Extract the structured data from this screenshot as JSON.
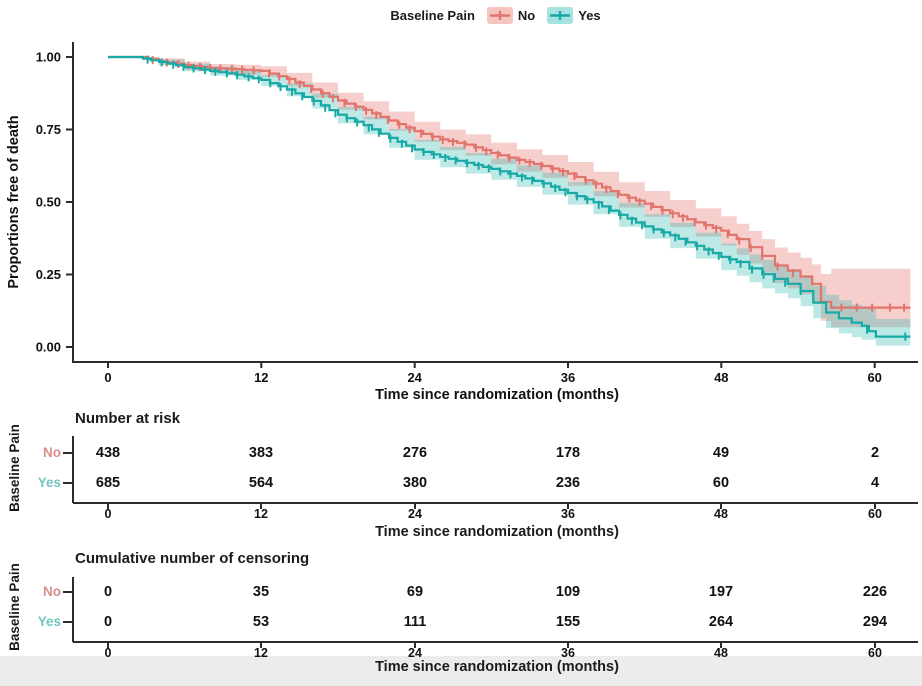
{
  "legend": {
    "title": "Baseline Pain",
    "items": [
      {
        "label": "No",
        "color": "#E1746C",
        "band": "#F5C4BF"
      },
      {
        "label": "Yes",
        "color": "#17A9A5",
        "band": "#A6E3E0"
      }
    ]
  },
  "main_plot": {
    "ylabel": "Proportions free of death",
    "xlabel": "Time since randomization (months)",
    "ytick_labels": [
      "0.00",
      "0.25",
      "0.50",
      "0.75",
      "1.00"
    ]
  },
  "chart_data": {
    "type": "line",
    "subtype": "kaplan-meier-survival",
    "title": "",
    "xlabel": "Time since randomization (months)",
    "ylabel": "Proportions free of death",
    "legend_title": "Baseline Pain",
    "legend_position": "top",
    "xlim": [
      0,
      62.8
    ],
    "ylim": [
      0,
      1
    ],
    "xticks": [
      0,
      12,
      24,
      36,
      48,
      60
    ],
    "yticks": [
      0,
      0.25,
      0.5,
      0.75,
      1
    ],
    "grid": false,
    "series": [
      {
        "name": "No",
        "color": "#E1746C",
        "band": "rgba(230,118,110,0.35)",
        "label_color": "#D98F89",
        "points": [
          [
            0,
            1,
            1,
            1
          ],
          [
            2.3,
            1,
            0.995,
            1
          ],
          [
            4,
            0.985,
            0.973,
            0.995
          ],
          [
            6,
            0.972,
            0.957,
            0.984
          ],
          [
            8,
            0.962,
            0.945,
            0.976
          ],
          [
            10,
            0.958,
            0.94,
            0.973
          ],
          [
            12,
            0.952,
            0.932,
            0.968
          ],
          [
            14,
            0.924,
            0.899,
            0.945
          ],
          [
            16,
            0.888,
            0.86,
            0.912
          ],
          [
            18,
            0.85,
            0.818,
            0.877
          ],
          [
            20,
            0.818,
            0.785,
            0.847
          ],
          [
            22,
            0.781,
            0.746,
            0.812
          ],
          [
            24,
            0.744,
            0.708,
            0.777
          ],
          [
            26,
            0.716,
            0.679,
            0.75
          ],
          [
            28,
            0.698,
            0.66,
            0.733
          ],
          [
            30,
            0.669,
            0.63,
            0.705
          ],
          [
            32,
            0.645,
            0.605,
            0.682
          ],
          [
            34,
            0.624,
            0.583,
            0.662
          ],
          [
            36,
            0.598,
            0.556,
            0.638
          ],
          [
            38,
            0.563,
            0.52,
            0.604
          ],
          [
            40,
            0.525,
            0.481,
            0.568
          ],
          [
            42,
            0.494,
            0.449,
            0.538
          ],
          [
            44,
            0.461,
            0.414,
            0.507
          ],
          [
            46,
            0.43,
            0.381,
            0.478
          ],
          [
            48,
            0.401,
            0.35,
            0.451
          ],
          [
            49.2,
            0.372,
            0.318,
            0.425
          ],
          [
            50.2,
            0.344,
            0.288,
            0.4
          ],
          [
            51.2,
            0.314,
            0.256,
            0.372
          ],
          [
            52.2,
            0.281,
            0.221,
            0.343
          ],
          [
            53.2,
            0.263,
            0.202,
            0.326
          ],
          [
            54.2,
            0.243,
            0.181,
            0.308
          ],
          [
            55.1,
            0.218,
            0.155,
            0.285
          ],
          [
            55.8,
            0.156,
            0.09,
            0.252
          ],
          [
            56.6,
            0.136,
            0.068,
            0.27
          ],
          [
            62.8,
            0.136,
            0.068,
            0.27
          ]
        ],
        "censor_ticks": [
          3.5,
          4.6,
          5.5,
          6.3,
          7.2,
          8,
          8.8,
          9.7,
          10.5,
          11.4,
          12.6,
          13.4,
          14.2,
          15,
          15.9,
          16.8,
          17.6,
          18.5,
          19.4,
          20.2,
          21,
          21.9,
          22.8,
          23.6,
          24.5,
          25.4,
          26.2,
          27,
          27.9,
          28.8,
          29.6,
          30.5,
          31.4,
          32.2,
          33,
          33.9,
          34.8,
          35.6,
          36.5,
          37.4,
          38.2,
          39,
          39.9,
          40.8,
          41.6,
          42.5,
          43.4,
          44.2,
          45,
          45.9,
          46.8,
          47.6,
          48.5,
          49.4,
          50.3,
          51.2,
          52.4,
          53.6,
          57.4,
          58.6,
          59.8,
          61.2,
          62.3
        ]
      },
      {
        "name": "Yes",
        "color": "#17A9A5",
        "band": "rgba(34,178,173,0.30)",
        "label_color": "#72C6C2",
        "points": [
          [
            0,
            1,
            1,
            1
          ],
          [
            2.1,
            1,
            0.996,
            1
          ],
          [
            4,
            0.983,
            0.972,
            0.991
          ],
          [
            6,
            0.965,
            0.951,
            0.977
          ],
          [
            8,
            0.952,
            0.936,
            0.966
          ],
          [
            10,
            0.939,
            0.921,
            0.955
          ],
          [
            12,
            0.921,
            0.9,
            0.938
          ],
          [
            14,
            0.888,
            0.864,
            0.909
          ],
          [
            16,
            0.849,
            0.822,
            0.873
          ],
          [
            18,
            0.801,
            0.771,
            0.828
          ],
          [
            20,
            0.765,
            0.733,
            0.794
          ],
          [
            22,
            0.721,
            0.687,
            0.752
          ],
          [
            24,
            0.681,
            0.646,
            0.714
          ],
          [
            26,
            0.656,
            0.62,
            0.69
          ],
          [
            28,
            0.635,
            0.598,
            0.669
          ],
          [
            30,
            0.614,
            0.577,
            0.649
          ],
          [
            32,
            0.59,
            0.552,
            0.626
          ],
          [
            34,
            0.564,
            0.525,
            0.601
          ],
          [
            36,
            0.531,
            0.491,
            0.569
          ],
          [
            38,
            0.499,
            0.458,
            0.538
          ],
          [
            40,
            0.456,
            0.414,
            0.497
          ],
          [
            42,
            0.416,
            0.373,
            0.458
          ],
          [
            44,
            0.385,
            0.341,
            0.428
          ],
          [
            46,
            0.349,
            0.304,
            0.394
          ],
          [
            48,
            0.311,
            0.265,
            0.357
          ],
          [
            49.2,
            0.293,
            0.246,
            0.34
          ],
          [
            50.2,
            0.271,
            0.223,
            0.319
          ],
          [
            51.2,
            0.251,
            0.202,
            0.3
          ],
          [
            52.2,
            0.235,
            0.185,
            0.285
          ],
          [
            53.2,
            0.218,
            0.168,
            0.269
          ],
          [
            54.2,
            0.193,
            0.141,
            0.246
          ],
          [
            55.2,
            0.153,
            0.099,
            0.211
          ],
          [
            56.2,
            0.119,
            0.065,
            0.18
          ],
          [
            57.2,
            0.099,
            0.047,
            0.161
          ],
          [
            58.2,
            0.084,
            0.034,
            0.146
          ],
          [
            59,
            0.073,
            0.025,
            0.137
          ],
          [
            60.1,
            0.036,
            0.005,
            0.097
          ],
          [
            62.8,
            0.036,
            0.005,
            0.097
          ]
        ],
        "censor_ticks": [
          3.1,
          4.2,
          5.1,
          5.9,
          6.7,
          7.6,
          8.4,
          9.3,
          10.1,
          11,
          11.8,
          12.7,
          13.5,
          14.4,
          15.2,
          16.1,
          17,
          17.8,
          18.7,
          19.5,
          20.4,
          21.2,
          22.1,
          23,
          23.8,
          24.7,
          25.5,
          26.4,
          27.2,
          28.1,
          29,
          29.8,
          30.7,
          31.5,
          32.4,
          33.2,
          34.1,
          35,
          35.8,
          36.7,
          37.5,
          38.4,
          39.2,
          40.1,
          41,
          41.8,
          42.7,
          43.5,
          44.4,
          45.2,
          46.1,
          47,
          47.8,
          48.7,
          49.5,
          50.4,
          51.3,
          52.1,
          53,
          54.2,
          59.4,
          62.4
        ]
      }
    ],
    "number_at_risk": {
      "title": "Number at risk",
      "ylabel": "Baseline Pain",
      "xlabel": "Time since randomization (months)",
      "times": [
        0,
        12,
        24,
        36,
        48,
        60
      ],
      "rows": [
        {
          "label": "No",
          "values": [
            438,
            383,
            276,
            178,
            49,
            2
          ]
        },
        {
          "label": "Yes",
          "values": [
            685,
            564,
            380,
            236,
            60,
            4
          ]
        }
      ]
    },
    "cumulative_censoring": {
      "title": "Cumulative number of censoring",
      "ylabel": "Baseline Pain",
      "xlabel": "Time since randomization (months)",
      "times": [
        0,
        12,
        24,
        36,
        48,
        60
      ],
      "rows": [
        {
          "label": "No",
          "values": [
            0,
            35,
            69,
            109,
            197,
            226
          ]
        },
        {
          "label": "Yes",
          "values": [
            0,
            53,
            111,
            155,
            264,
            294
          ]
        }
      ]
    }
  }
}
